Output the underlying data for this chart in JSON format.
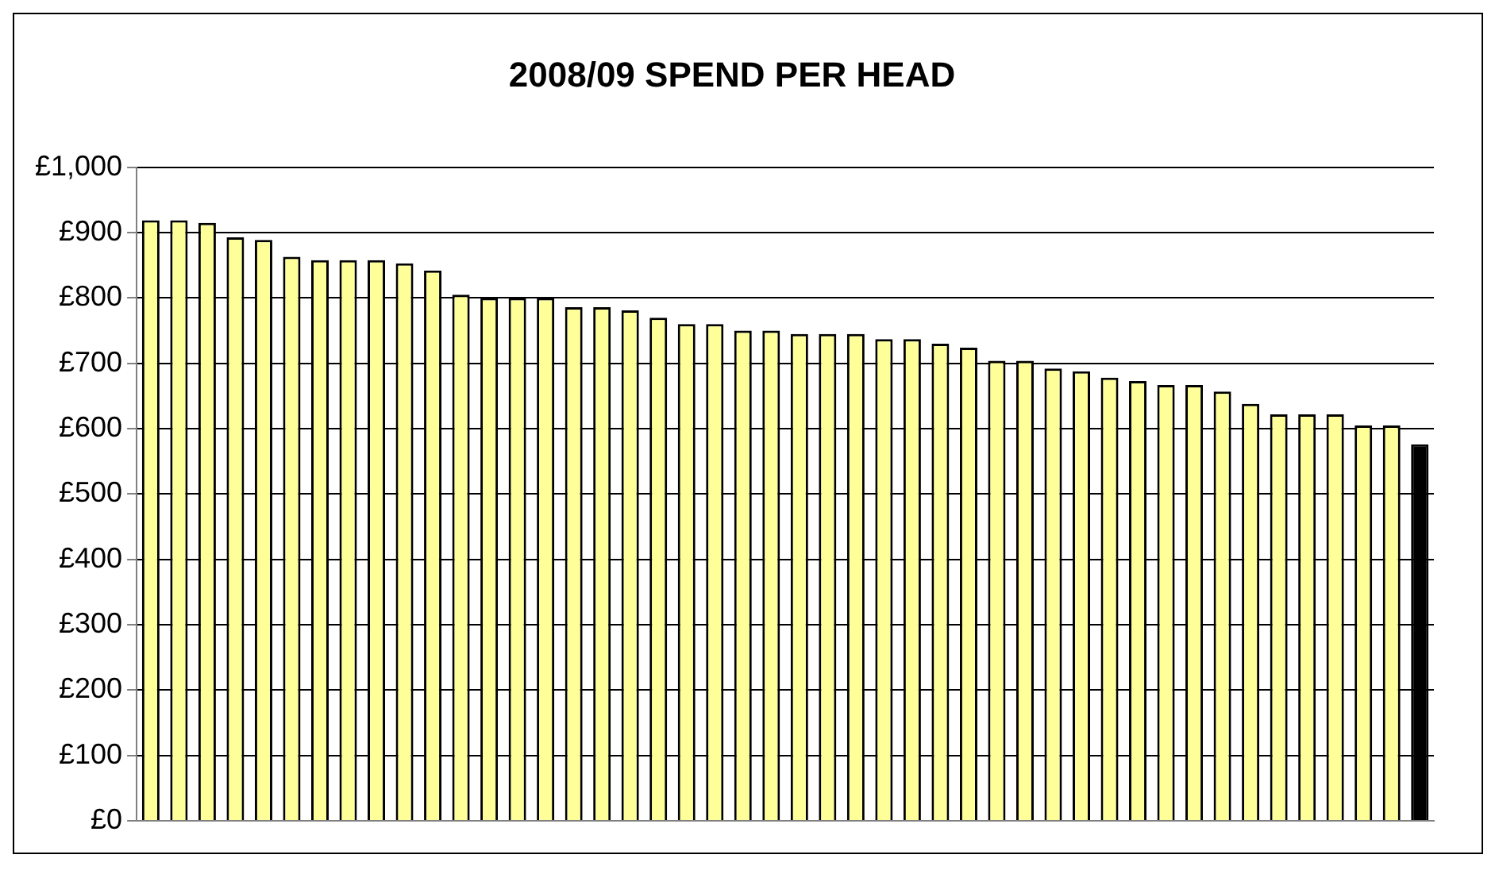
{
  "chart_data": {
    "type": "bar",
    "title": "2008/09 SPEND PER HEAD",
    "categories": [
      null,
      null,
      null,
      null,
      null,
      null,
      null,
      null,
      null,
      null,
      null,
      null,
      null,
      null,
      null,
      null,
      null,
      null,
      null,
      null,
      null,
      null,
      null,
      null,
      null,
      null,
      null,
      null,
      null,
      null,
      null,
      null,
      null,
      null,
      null,
      null,
      null,
      null,
      null,
      null,
      null,
      null,
      null,
      null,
      null,
      null
    ],
    "values": [
      919,
      919,
      915,
      893,
      889,
      863,
      858,
      858,
      858,
      853,
      842,
      805,
      800,
      800,
      800,
      786,
      786,
      781,
      770,
      760,
      760,
      750,
      750,
      745,
      745,
      745,
      737,
      737,
      730,
      724,
      704,
      704,
      692,
      688,
      678,
      673,
      667,
      667,
      657,
      638,
      622,
      622,
      622,
      605,
      605,
      576
    ],
    "colors": [
      "#ffff99",
      "#ffff99",
      "#ffff99",
      "#ffff99",
      "#ffff99",
      "#ffff99",
      "#ffff99",
      "#ffff99",
      "#ffff99",
      "#ffff99",
      "#ffff99",
      "#ffff99",
      "#ffff99",
      "#ffff99",
      "#ffff99",
      "#ffff99",
      "#ffff99",
      "#ffff99",
      "#ffff99",
      "#ffff99",
      "#ffff99",
      "#ffff99",
      "#ffff99",
      "#ffff99",
      "#ffff99",
      "#ffff99",
      "#ffff99",
      "#ffff99",
      "#ffff99",
      "#ffff99",
      "#ffff99",
      "#ffff99",
      "#ffff99",
      "#ffff99",
      "#ffff99",
      "#ffff99",
      "#ffff99",
      "#ffff99",
      "#ffff99",
      "#ffff99",
      "#ffff99",
      "#ffff99",
      "#ffff99",
      "#ffff99",
      "#ffff99",
      "#000000"
    ],
    "ylim": [
      0,
      1000
    ],
    "yticks": [
      {
        "value": 0,
        "label": "£0"
      },
      {
        "value": 100,
        "label": "£100"
      },
      {
        "value": 200,
        "label": "£200"
      },
      {
        "value": 300,
        "label": "£300"
      },
      {
        "value": 400,
        "label": "£400"
      },
      {
        "value": 500,
        "label": "£500"
      },
      {
        "value": 600,
        "label": "£600"
      },
      {
        "value": 700,
        "label": "£700"
      },
      {
        "value": 800,
        "label": "£800"
      },
      {
        "value": 900,
        "label": "£900"
      },
      {
        "value": 1000,
        "label": "£1,000"
      }
    ],
    "grid": "y",
    "legend": false
  }
}
